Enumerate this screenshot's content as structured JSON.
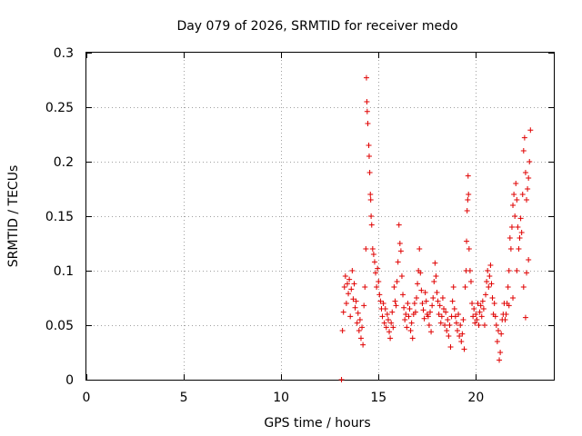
{
  "chart_data": {
    "type": "scatter",
    "title": "Day 079 of 2026, SRMTID for receiver medo",
    "xlabel": "GPS time / hours",
    "ylabel": "SRMTID / TECUs",
    "xlim": [
      0,
      24
    ],
    "ylim": [
      0,
      0.3
    ],
    "x_ticks": [
      0,
      5,
      10,
      15,
      20
    ],
    "x_tick_labels": [
      "0",
      "5",
      "10",
      "15",
      "20"
    ],
    "y_ticks": [
      0,
      0.05,
      0.1,
      0.15,
      0.2,
      0.25,
      0.3
    ],
    "y_tick_labels": [
      "0",
      "0.05",
      "0.1",
      "0.15",
      "0.2",
      "0.25",
      "0.3"
    ],
    "grid": true,
    "marker": "+",
    "color": "#e00000",
    "series": [
      {
        "name": "SRMTID",
        "points": [
          [
            13.1,
            0.0
          ],
          [
            13.15,
            0.045
          ],
          [
            13.2,
            0.062
          ],
          [
            13.25,
            0.085
          ],
          [
            13.3,
            0.095
          ],
          [
            13.35,
            0.07
          ],
          [
            13.4,
            0.088
          ],
          [
            13.45,
            0.079
          ],
          [
            13.5,
            0.092
          ],
          [
            13.55,
            0.058
          ],
          [
            13.6,
            0.083
          ],
          [
            13.65,
            0.1
          ],
          [
            13.7,
            0.074
          ],
          [
            13.75,
            0.088
          ],
          [
            13.8,
            0.066
          ],
          [
            13.85,
            0.072
          ],
          [
            13.9,
            0.052
          ],
          [
            13.95,
            0.061
          ],
          [
            14.0,
            0.045
          ],
          [
            14.05,
            0.055
          ],
          [
            14.1,
            0.038
          ],
          [
            14.15,
            0.048
          ],
          [
            14.2,
            0.032
          ],
          [
            14.25,
            0.068
          ],
          [
            14.3,
            0.085
          ],
          [
            14.35,
            0.12
          ],
          [
            14.38,
            0.277
          ],
          [
            14.4,
            0.255
          ],
          [
            14.42,
            0.246
          ],
          [
            14.45,
            0.235
          ],
          [
            14.5,
            0.215
          ],
          [
            14.52,
            0.205
          ],
          [
            14.55,
            0.19
          ],
          [
            14.58,
            0.17
          ],
          [
            14.6,
            0.165
          ],
          [
            14.62,
            0.15
          ],
          [
            14.65,
            0.142
          ],
          [
            14.7,
            0.12
          ],
          [
            14.75,
            0.115
          ],
          [
            14.8,
            0.108
          ],
          [
            14.85,
            0.098
          ],
          [
            14.9,
            0.085
          ],
          [
            14.95,
            0.102
          ],
          [
            15.0,
            0.09
          ],
          [
            15.05,
            0.078
          ],
          [
            15.1,
            0.072
          ],
          [
            15.15,
            0.065
          ],
          [
            15.2,
            0.058
          ],
          [
            15.25,
            0.07
          ],
          [
            15.3,
            0.052
          ],
          [
            15.35,
            0.065
          ],
          [
            15.4,
            0.048
          ],
          [
            15.45,
            0.06
          ],
          [
            15.5,
            0.055
          ],
          [
            15.55,
            0.044
          ],
          [
            15.6,
            0.038
          ],
          [
            15.65,
            0.052
          ],
          [
            15.7,
            0.062
          ],
          [
            15.75,
            0.048
          ],
          [
            15.8,
            0.085
          ],
          [
            15.85,
            0.072
          ],
          [
            15.9,
            0.068
          ],
          [
            15.95,
            0.09
          ],
          [
            16.0,
            0.108
          ],
          [
            16.05,
            0.142
          ],
          [
            16.1,
            0.125
          ],
          [
            16.15,
            0.118
          ],
          [
            16.2,
            0.095
          ],
          [
            16.25,
            0.078
          ],
          [
            16.3,
            0.066
          ],
          [
            16.35,
            0.055
          ],
          [
            16.4,
            0.06
          ],
          [
            16.45,
            0.048
          ],
          [
            16.5,
            0.07
          ],
          [
            16.55,
            0.058
          ],
          [
            16.6,
            0.065
          ],
          [
            16.65,
            0.045
          ],
          [
            16.7,
            0.052
          ],
          [
            16.75,
            0.038
          ],
          [
            16.8,
            0.06
          ],
          [
            16.85,
            0.07
          ],
          [
            16.9,
            0.062
          ],
          [
            16.95,
            0.075
          ],
          [
            17.0,
            0.088
          ],
          [
            17.05,
            0.1
          ],
          [
            17.1,
            0.12
          ],
          [
            17.15,
            0.098
          ],
          [
            17.2,
            0.082
          ],
          [
            17.25,
            0.07
          ],
          [
            17.3,
            0.064
          ],
          [
            17.35,
            0.056
          ],
          [
            17.4,
            0.08
          ],
          [
            17.45,
            0.072
          ],
          [
            17.5,
            0.06
          ],
          [
            17.55,
            0.058
          ],
          [
            17.6,
            0.05
          ],
          [
            17.65,
            0.062
          ],
          [
            17.7,
            0.044
          ],
          [
            17.75,
            0.068
          ],
          [
            17.8,
            0.075
          ],
          [
            17.85,
            0.09
          ],
          [
            17.9,
            0.107
          ],
          [
            17.95,
            0.095
          ],
          [
            18.0,
            0.08
          ],
          [
            18.05,
            0.072
          ],
          [
            18.1,
            0.06
          ],
          [
            18.15,
            0.068
          ],
          [
            18.2,
            0.052
          ],
          [
            18.25,
            0.058
          ],
          [
            18.3,
            0.075
          ],
          [
            18.35,
            0.065
          ],
          [
            18.4,
            0.05
          ],
          [
            18.45,
            0.062
          ],
          [
            18.5,
            0.045
          ],
          [
            18.55,
            0.055
          ],
          [
            18.6,
            0.04
          ],
          [
            18.65,
            0.05
          ],
          [
            18.7,
            0.03
          ],
          [
            18.75,
            0.058
          ],
          [
            18.8,
            0.072
          ],
          [
            18.85,
            0.085
          ],
          [
            18.9,
            0.065
          ],
          [
            18.95,
            0.058
          ],
          [
            19.0,
            0.052
          ],
          [
            19.05,
            0.045
          ],
          [
            19.1,
            0.06
          ],
          [
            19.15,
            0.04
          ],
          [
            19.2,
            0.05
          ],
          [
            19.25,
            0.035
          ],
          [
            19.3,
            0.042
          ],
          [
            19.35,
            0.055
          ],
          [
            19.4,
            0.028
          ],
          [
            19.45,
            0.085
          ],
          [
            19.5,
            0.1
          ],
          [
            19.52,
            0.127
          ],
          [
            19.55,
            0.155
          ],
          [
            19.58,
            0.165
          ],
          [
            19.6,
            0.187
          ],
          [
            19.62,
            0.17
          ],
          [
            19.65,
            0.12
          ],
          [
            19.7,
            0.1
          ],
          [
            19.75,
            0.09
          ],
          [
            19.8,
            0.07
          ],
          [
            19.85,
            0.058
          ],
          [
            19.9,
            0.065
          ],
          [
            19.95,
            0.052
          ],
          [
            20.0,
            0.06
          ],
          [
            20.05,
            0.055
          ],
          [
            20.1,
            0.07
          ],
          [
            20.15,
            0.05
          ],
          [
            20.2,
            0.062
          ],
          [
            20.25,
            0.068
          ],
          [
            20.3,
            0.058
          ],
          [
            20.35,
            0.072
          ],
          [
            20.4,
            0.065
          ],
          [
            20.45,
            0.05
          ],
          [
            20.5,
            0.078
          ],
          [
            20.55,
            0.09
          ],
          [
            20.6,
            0.1
          ],
          [
            20.65,
            0.085
          ],
          [
            20.7,
            0.095
          ],
          [
            20.75,
            0.105
          ],
          [
            20.8,
            0.088
          ],
          [
            20.85,
            0.075
          ],
          [
            20.9,
            0.06
          ],
          [
            20.95,
            0.07
          ],
          [
            21.0,
            0.058
          ],
          [
            21.05,
            0.05
          ],
          [
            21.1,
            0.035
          ],
          [
            21.15,
            0.045
          ],
          [
            21.2,
            0.018
          ],
          [
            21.25,
            0.025
          ],
          [
            21.3,
            0.042
          ],
          [
            21.35,
            0.055
          ],
          [
            21.4,
            0.06
          ],
          [
            21.45,
            0.07
          ],
          [
            21.5,
            0.055
          ],
          [
            21.55,
            0.06
          ],
          [
            21.6,
            0.07
          ],
          [
            21.65,
            0.085
          ],
          [
            21.7,
            0.1
          ],
          [
            21.75,
            0.13
          ],
          [
            21.8,
            0.12
          ],
          [
            21.85,
            0.14
          ],
          [
            21.9,
            0.16
          ],
          [
            21.95,
            0.17
          ],
          [
            22.0,
            0.15
          ],
          [
            22.05,
            0.18
          ],
          [
            22.1,
            0.165
          ],
          [
            22.15,
            0.14
          ],
          [
            22.2,
            0.12
          ],
          [
            22.25,
            0.13
          ],
          [
            22.3,
            0.148
          ],
          [
            22.35,
            0.135
          ],
          [
            22.4,
            0.17
          ],
          [
            22.45,
            0.21
          ],
          [
            22.5,
            0.222
          ],
          [
            22.55,
            0.19
          ],
          [
            22.6,
            0.165
          ],
          [
            22.65,
            0.175
          ],
          [
            22.7,
            0.185
          ],
          [
            22.75,
            0.2
          ],
          [
            22.8,
            0.229
          ],
          [
            22.45,
            0.085
          ],
          [
            22.55,
            0.057
          ],
          [
            22.6,
            0.098
          ],
          [
            22.7,
            0.11
          ],
          [
            22.1,
            0.1
          ],
          [
            21.9,
            0.075
          ],
          [
            21.7,
            0.068
          ]
        ]
      }
    ]
  }
}
